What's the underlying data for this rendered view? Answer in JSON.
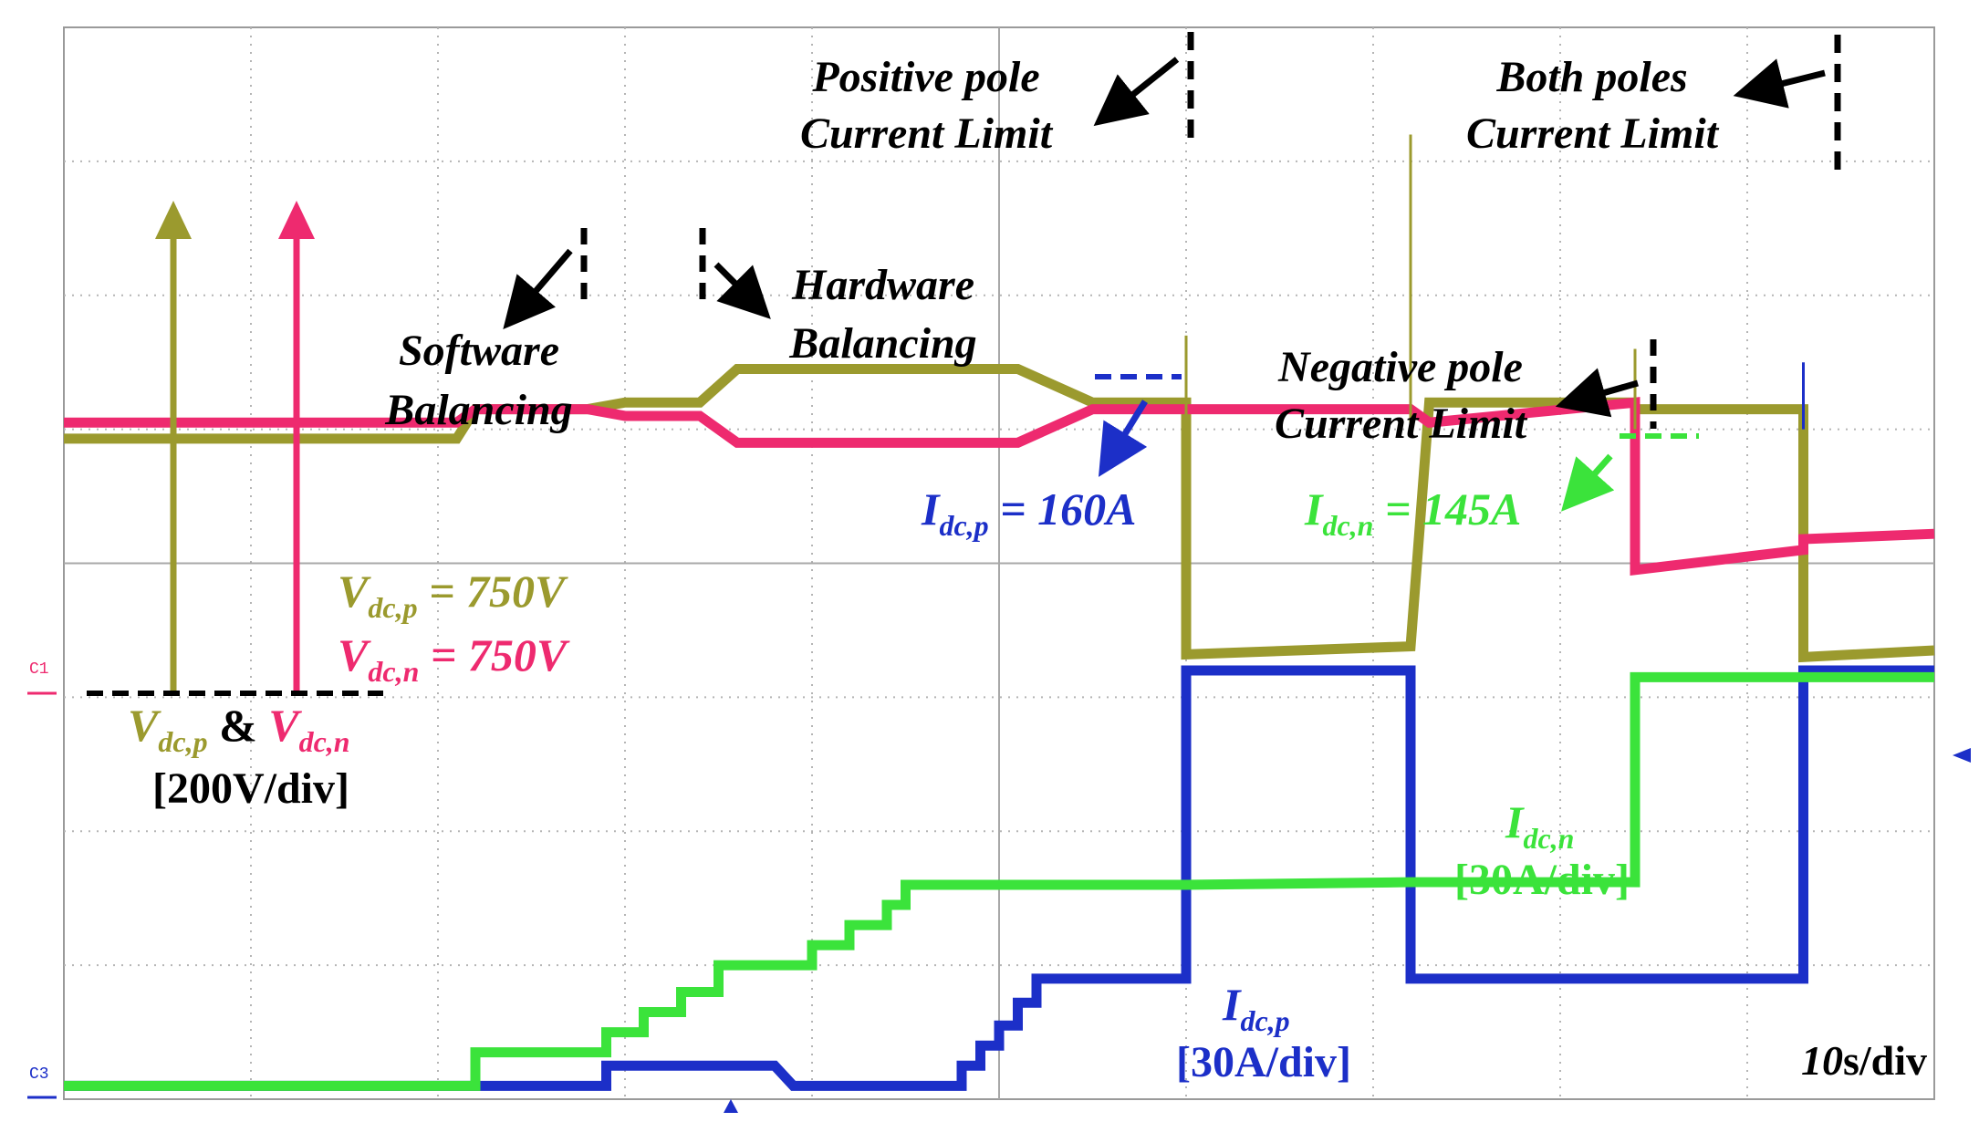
{
  "chart_data": {
    "type": "line",
    "title": "",
    "grid": true,
    "time_scale_value": "10",
    "time_scale_unit": "s/div",
    "channel_markers": [
      "C1",
      "C3"
    ],
    "annotations": {
      "positive_pole_line1": "Positive pole",
      "positive_pole_line2": "Current Limit",
      "both_poles_line1": "Both poles",
      "both_poles_line2": "Current Limit",
      "software_line1": "Software",
      "software_line2": "Balancing",
      "hardware_line1": "Hardware",
      "hardware_line2": "Balancing",
      "negative_pole_line1": "Negative pole",
      "negative_pole_line2": "Current Limit"
    },
    "labels": {
      "I_sym": "I",
      "V_sym": "V",
      "sub_p": "dc,p",
      "sub_n": "dc,n",
      "idcp_value": " = 160A",
      "idcn_value": " = 145A",
      "vdcp_value": " = 750V",
      "vdcn_value": " = 750V",
      "amp": " & ",
      "v_scale": "[200V/div]",
      "idcp_scale": "[30A/div]",
      "idcn_scale": "[30A/div]"
    },
    "colors": {
      "vdcp": "#9b9a2e",
      "vdcn": "#ee2a6f",
      "idcp": "#1c2fc8",
      "idcn": "#3be33b",
      "annotation": "#000000"
    },
    "xlim": [
      0,
      100
    ],
    "series": [
      {
        "name": "Vdc,p",
        "points": [
          [
            0,
            4.93
          ],
          [
            21,
            4.93
          ],
          [
            22,
            5.15
          ],
          [
            28,
            5.15
          ],
          [
            30,
            5.2
          ],
          [
            34,
            5.2
          ],
          [
            36,
            5.45
          ],
          [
            51,
            5.45
          ],
          [
            55,
            5.2
          ],
          [
            60,
            5.2
          ],
          [
            60,
            3.32
          ],
          [
            72,
            3.38
          ],
          [
            73,
            5.2
          ],
          [
            84,
            5.2
          ],
          [
            84,
            5.15
          ],
          [
            93,
            5.15
          ],
          [
            93,
            3.3
          ],
          [
            100,
            3.35
          ]
        ]
      },
      {
        "name": "Vdc,n",
        "points": [
          [
            0,
            5.05
          ],
          [
            21,
            5.05
          ],
          [
            22,
            5.15
          ],
          [
            28,
            5.15
          ],
          [
            30,
            5.1
          ],
          [
            34,
            5.1
          ],
          [
            36,
            4.9
          ],
          [
            51,
            4.9
          ],
          [
            55,
            5.15
          ],
          [
            72,
            5.15
          ],
          [
            73,
            5.05
          ],
          [
            84,
            5.2
          ],
          [
            84,
            3.95
          ],
          [
            93,
            4.1
          ],
          [
            93,
            4.18
          ],
          [
            100,
            4.22
          ]
        ]
      },
      {
        "name": "Idc,p",
        "points": [
          [
            0,
            0.1
          ],
          [
            29,
            0.1
          ],
          [
            29,
            0.25
          ],
          [
            38,
            0.25
          ],
          [
            39,
            0.1
          ],
          [
            48,
            0.1
          ],
          [
            48,
            0.25
          ],
          [
            49,
            0.25
          ],
          [
            49,
            0.4
          ],
          [
            50,
            0.4
          ],
          [
            50,
            0.55
          ],
          [
            51,
            0.55
          ],
          [
            51,
            0.72
          ],
          [
            52,
            0.72
          ],
          [
            52,
            0.9
          ],
          [
            60,
            0.9
          ],
          [
            60,
            3.2
          ],
          [
            72,
            3.2
          ],
          [
            72,
            0.9
          ],
          [
            93,
            0.9
          ],
          [
            93,
            3.2
          ],
          [
            100,
            3.2
          ]
        ]
      },
      {
        "name": "Idc,n",
        "points": [
          [
            0,
            0.1
          ],
          [
            22,
            0.1
          ],
          [
            22,
            0.35
          ],
          [
            29,
            0.35
          ],
          [
            29,
            0.5
          ],
          [
            31,
            0.5
          ],
          [
            31,
            0.65
          ],
          [
            33,
            0.65
          ],
          [
            33,
            0.8
          ],
          [
            35,
            0.8
          ],
          [
            35,
            1.0
          ],
          [
            40,
            1.0
          ],
          [
            40,
            1.15
          ],
          [
            42,
            1.15
          ],
          [
            42,
            1.3
          ],
          [
            44,
            1.3
          ],
          [
            44,
            1.45
          ],
          [
            45,
            1.45
          ],
          [
            45,
            1.6
          ],
          [
            60,
            1.6
          ],
          [
            72,
            1.62
          ],
          [
            84,
            1.62
          ],
          [
            84,
            3.15
          ],
          [
            100,
            3.15
          ]
        ]
      }
    ],
    "vertical_spikes": [
      {
        "series": "Vdc,p",
        "x": 60,
        "y_top": 5.7
      },
      {
        "series": "Vdc,p",
        "x": 72,
        "y_top": 7.2
      },
      {
        "series": "Vdc,p",
        "x": 84,
        "y_top": 5.6
      },
      {
        "series": "Idc,p",
        "x": 93,
        "y_top": 5.5
      }
    ]
  }
}
